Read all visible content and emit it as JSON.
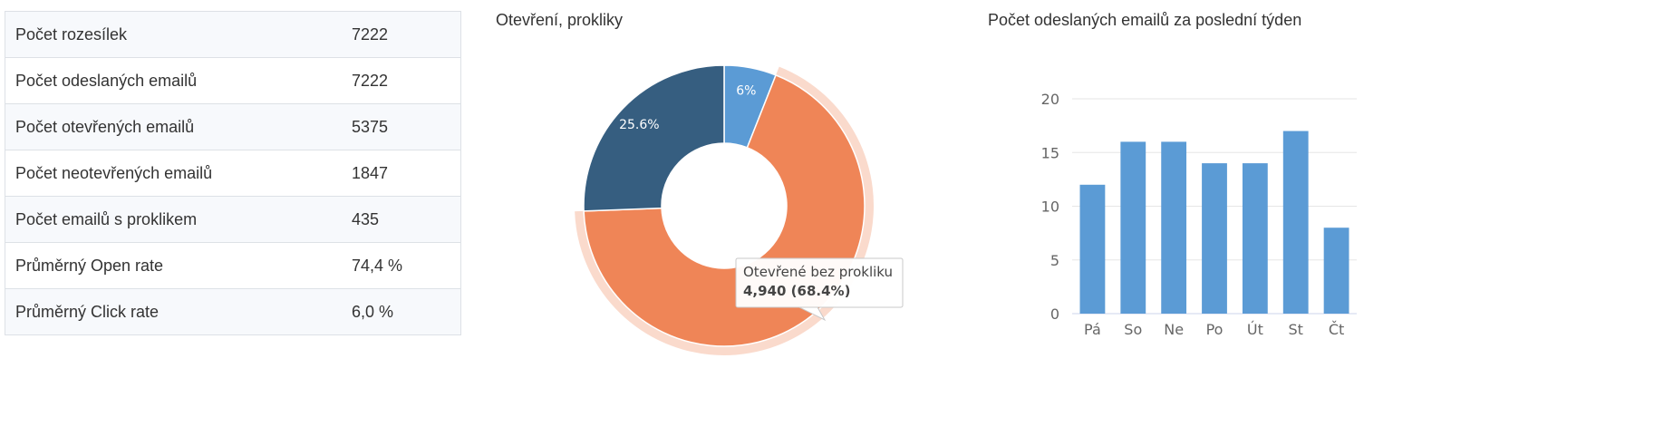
{
  "stats": [
    {
      "label": "Počet rozesílek",
      "value": "7222"
    },
    {
      "label": "Počet odeslaných emailů",
      "value": "7222"
    },
    {
      "label": "Počet otevřených emailů",
      "value": "5375"
    },
    {
      "label": "Počet neotevřených emailů",
      "value": "1847"
    },
    {
      "label": "Počet emailů s proklikem",
      "value": "435"
    },
    {
      "label": "Průměrný Open rate",
      "value": "74,4 %"
    },
    {
      "label": "Průměrný Click rate",
      "value": "6,0 %"
    }
  ],
  "chart_data": [
    {
      "type": "pie",
      "title": "Otevření, prokliky",
      "slices": [
        {
          "label": "6%",
          "percent": 6.0,
          "color": "#5b9bd5"
        },
        {
          "label": "",
          "percent": 68.4,
          "value": 4940,
          "color": "#ef8557",
          "highlighted": true
        },
        {
          "label": "25.6%",
          "percent": 25.6,
          "color": "#365e80"
        }
      ],
      "tooltip": {
        "name": "Otevřené bez prokliku",
        "value_text": "4,940 (68.4%)"
      }
    },
    {
      "type": "bar",
      "title": "Počet odeslaných emailů za poslední týden",
      "categories": [
        "Pá",
        "So",
        "Ne",
        "Po",
        "Út",
        "St",
        "Čt"
      ],
      "values": [
        12,
        16,
        16,
        14,
        14,
        17,
        8
      ],
      "ylim": [
        0,
        20
      ],
      "yticks": [
        0,
        5,
        10,
        15,
        20
      ],
      "color": "#5b9bd5",
      "grid": true
    }
  ]
}
